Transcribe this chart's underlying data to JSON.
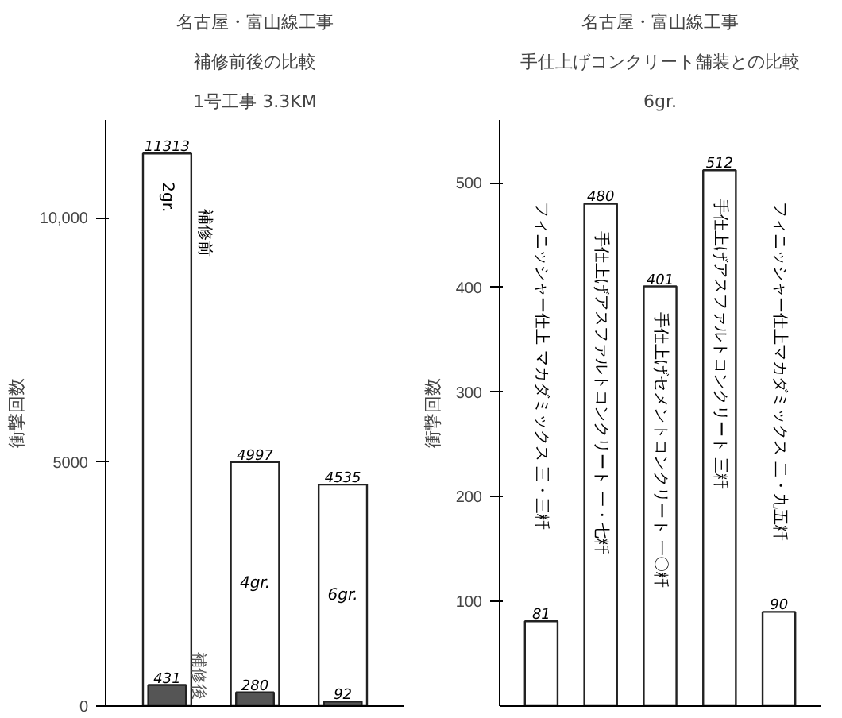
{
  "chart_data": [
    {
      "type": "bar",
      "title": "名古屋・富山線工事",
      "subtitle": "補修前後の比較",
      "annotations": [
        "1号工事 3.3KM"
      ],
      "ylabel": "衝撃回数",
      "categories": [
        "2gr.",
        "4gr.",
        "6gr."
      ],
      "series": [
        {
          "name": "補修前",
          "color": "#ffffff",
          "values": [
            11313,
            4997,
            4535
          ]
        },
        {
          "name": "補修後",
          "color": "#555555",
          "values": [
            431,
            280,
            92
          ]
        }
      ],
      "ylim": [
        0,
        12000
      ],
      "yticks": [
        0,
        5000,
        {
          "value": 10000,
          "label": "10,000"
        }
      ],
      "data_labels": true,
      "grid": false,
      "tick_labels": "y"
    },
    {
      "type": "bar",
      "title": "名古屋・富山線工事",
      "subtitle": "手仕上げコンクリート舗装との比較",
      "annotations": [
        "6gr."
      ],
      "ylabel": "衝撃回数",
      "categories": [
        "フィニッシャー仕上 マカダミックス 三・三粁",
        "手仕上げアスファルトコンクリート 一・七粁",
        "手仕上げセメントコンクリート 一〇粁",
        "手仕上げアスファルトコンクリート 三粁",
        "フィニッシャー仕上マカダミックス 二・九五粁"
      ],
      "values": [
        81,
        480,
        401,
        512,
        90
      ],
      "color": "#ffffff",
      "ylim": [
        0,
        560
      ],
      "yticks": [
        100,
        200,
        300,
        400,
        500
      ],
      "data_labels": true,
      "grid": false,
      "tick_labels": "y"
    }
  ]
}
